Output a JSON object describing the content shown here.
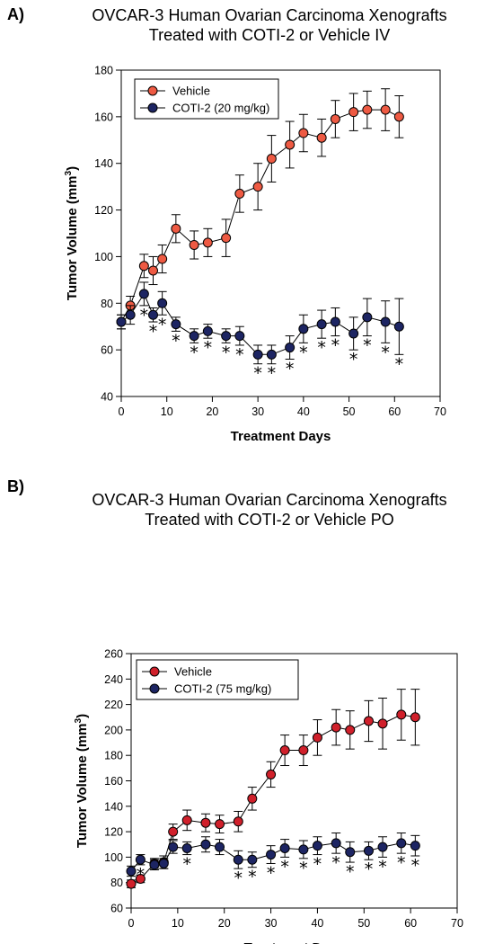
{
  "chart_data": [
    {
      "type": "line",
      "panel_label": "A)",
      "title_line1": "OVCAR-3 Human Ovarian Carcinoma Xenografts",
      "title_line2": "Treated with COTI-2 or Vehicle IV",
      "xlabel": "Treatment Days",
      "ylabel_main": "Tumor Volume (mm",
      "ylabel_sup": "3",
      "ylabel_end": ")",
      "xlim": [
        0,
        70
      ],
      "ylim": [
        40,
        180
      ],
      "xticks": [
        0,
        10,
        20,
        30,
        40,
        50,
        60,
        70
      ],
      "yticks": [
        40,
        60,
        80,
        100,
        120,
        140,
        160,
        180
      ],
      "grid": false,
      "legend_position": "top-left",
      "series": [
        {
          "name": "Vehicle",
          "color": "#ee5a43",
          "points": [
            {
              "x": 0,
              "y": 72,
              "err": 3
            },
            {
              "x": 2,
              "y": 79,
              "err": 4
            },
            {
              "x": 5,
              "y": 96,
              "err": 5
            },
            {
              "x": 7,
              "y": 94,
              "err": 6
            },
            {
              "x": 9,
              "y": 99,
              "err": 6
            },
            {
              "x": 12,
              "y": 112,
              "err": 6
            },
            {
              "x": 16,
              "y": 105,
              "err": 6
            },
            {
              "x": 19,
              "y": 106,
              "err": 6
            },
            {
              "x": 23,
              "y": 108,
              "err": 8
            },
            {
              "x": 26,
              "y": 127,
              "err": 8
            },
            {
              "x": 30,
              "y": 130,
              "err": 10
            },
            {
              "x": 33,
              "y": 142,
              "err": 10
            },
            {
              "x": 37,
              "y": 148,
              "err": 10
            },
            {
              "x": 40,
              "y": 153,
              "err": 8
            },
            {
              "x": 44,
              "y": 151,
              "err": 8
            },
            {
              "x": 47,
              "y": 159,
              "err": 8
            },
            {
              "x": 51,
              "y": 162,
              "err": 8
            },
            {
              "x": 54,
              "y": 163,
              "err": 8
            },
            {
              "x": 58,
              "y": 163,
              "err": 9
            },
            {
              "x": 61,
              "y": 160,
              "err": 9
            }
          ]
        },
        {
          "name": "COTI-2 (20 mg/kg)",
          "color": "#1d2563",
          "points": [
            {
              "x": 0,
              "y": 72,
              "err": 3
            },
            {
              "x": 2,
              "y": 75,
              "err": 4
            },
            {
              "x": 5,
              "y": 84,
              "err": 5
            },
            {
              "x": 7,
              "y": 75,
              "err": 3
            },
            {
              "x": 9,
              "y": 80,
              "err": 5
            },
            {
              "x": 12,
              "y": 71,
              "err": 3
            },
            {
              "x": 16,
              "y": 66,
              "err": 3
            },
            {
              "x": 19,
              "y": 68,
              "err": 3
            },
            {
              "x": 23,
              "y": 66,
              "err": 3
            },
            {
              "x": 26,
              "y": 66,
              "err": 4
            },
            {
              "x": 30,
              "y": 58,
              "err": 4
            },
            {
              "x": 33,
              "y": 58,
              "err": 4
            },
            {
              "x": 37,
              "y": 61,
              "err": 5
            },
            {
              "x": 40,
              "y": 69,
              "err": 6
            },
            {
              "x": 44,
              "y": 71,
              "err": 6
            },
            {
              "x": 47,
              "y": 72,
              "err": 6
            },
            {
              "x": 51,
              "y": 67,
              "err": 7
            },
            {
              "x": 54,
              "y": 74,
              "err": 8
            },
            {
              "x": 58,
              "y": 72,
              "err": 9
            },
            {
              "x": 61,
              "y": 70,
              "err": 12
            }
          ]
        }
      ],
      "significance": {
        "symbol": "*",
        "x": [
          5,
          7,
          9,
          12,
          16,
          19,
          23,
          26,
          30,
          33,
          37,
          40,
          44,
          47,
          51,
          54,
          58,
          61
        ]
      }
    },
    {
      "type": "line",
      "panel_label": "B)",
      "title_line1": "OVCAR-3 Human Ovarian Carcinoma Xenografts",
      "title_line2": "Treated with COTI-2 or Vehicle PO",
      "xlabel": "Treatment Days",
      "ylabel_main": "Tumor Volume (mm",
      "ylabel_sup": "3",
      "ylabel_end": ")",
      "xlim": [
        0,
        70
      ],
      "ylim": [
        60,
        260
      ],
      "xticks": [
        0,
        10,
        20,
        30,
        40,
        50,
        60,
        70
      ],
      "yticks": [
        60,
        80,
        100,
        120,
        140,
        160,
        180,
        200,
        220,
        240,
        260
      ],
      "grid": false,
      "legend_position": "top-left",
      "series": [
        {
          "name": "Vehicle",
          "color": "#d0202b",
          "points": [
            {
              "x": 0,
              "y": 79,
              "err": 3
            },
            {
              "x": 2,
              "y": 83,
              "err": 3
            },
            {
              "x": 5,
              "y": 95,
              "err": 4
            },
            {
              "x": 7,
              "y": 96,
              "err": 5
            },
            {
              "x": 9,
              "y": 120,
              "err": 6
            },
            {
              "x": 12,
              "y": 129,
              "err": 8
            },
            {
              "x": 16,
              "y": 127,
              "err": 7
            },
            {
              "x": 19,
              "y": 126,
              "err": 7
            },
            {
              "x": 23,
              "y": 128,
              "err": 8
            },
            {
              "x": 26,
              "y": 146,
              "err": 9
            },
            {
              "x": 30,
              "y": 165,
              "err": 10
            },
            {
              "x": 33,
              "y": 184,
              "err": 12
            },
            {
              "x": 37,
              "y": 184,
              "err": 12
            },
            {
              "x": 40,
              "y": 194,
              "err": 14
            },
            {
              "x": 44,
              "y": 202,
              "err": 14
            },
            {
              "x": 47,
              "y": 200,
              "err": 15
            },
            {
              "x": 51,
              "y": 207,
              "err": 16
            },
            {
              "x": 54,
              "y": 205,
              "err": 20
            },
            {
              "x": 58,
              "y": 212,
              "err": 20
            },
            {
              "x": 61,
              "y": 210,
              "err": 22
            }
          ]
        },
        {
          "name": "COTI-2 (75 mg/kg)",
          "color": "#1d2563",
          "points": [
            {
              "x": 0,
              "y": 89,
              "err": 4
            },
            {
              "x": 2,
              "y": 98,
              "err": 4
            },
            {
              "x": 5,
              "y": 94,
              "err": 4
            },
            {
              "x": 7,
              "y": 95,
              "err": 4
            },
            {
              "x": 9,
              "y": 108,
              "err": 5
            },
            {
              "x": 12,
              "y": 107,
              "err": 5
            },
            {
              "x": 16,
              "y": 110,
              "err": 6
            },
            {
              "x": 19,
              "y": 108,
              "err": 6
            },
            {
              "x": 23,
              "y": 98,
              "err": 7
            },
            {
              "x": 26,
              "y": 98,
              "err": 6
            },
            {
              "x": 30,
              "y": 102,
              "err": 7
            },
            {
              "x": 33,
              "y": 107,
              "err": 7
            },
            {
              "x": 37,
              "y": 106,
              "err": 7
            },
            {
              "x": 40,
              "y": 109,
              "err": 7
            },
            {
              "x": 44,
              "y": 111,
              "err": 8
            },
            {
              "x": 47,
              "y": 104,
              "err": 8
            },
            {
              "x": 51,
              "y": 105,
              "err": 7
            },
            {
              "x": 54,
              "y": 108,
              "err": 8
            },
            {
              "x": 58,
              "y": 111,
              "err": 8
            },
            {
              "x": 61,
              "y": 109,
              "err": 8
            }
          ]
        }
      ],
      "significance": {
        "symbol": "*",
        "x": [
          2,
          12,
          23,
          26,
          30,
          33,
          37,
          40,
          44,
          47,
          51,
          54,
          58,
          61
        ]
      }
    }
  ]
}
